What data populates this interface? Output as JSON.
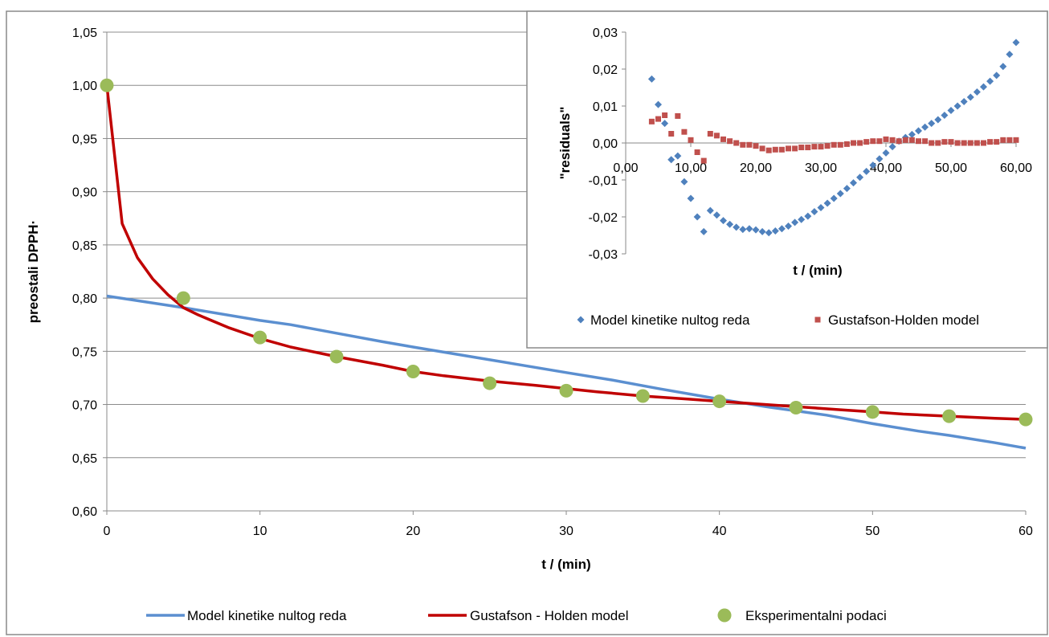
{
  "chart_data": [
    {
      "type": "line",
      "xlabel": "t / (min)",
      "ylabel": "preostali DPPH·",
      "xlim": [
        0,
        60
      ],
      "ylim": [
        0.6,
        1.05
      ],
      "xticks": [
        "0",
        "10",
        "20",
        "30",
        "40",
        "50",
        "60"
      ],
      "yticks": [
        "0,60",
        "0,65",
        "0,70",
        "0,75",
        "0,80",
        "0,85",
        "0,90",
        "0,95",
        "1,00",
        "1,05"
      ],
      "grid": "horizontal",
      "legend_position": "bottom",
      "series": [
        {
          "name": "Model kinetike nultog reda",
          "kind": "line",
          "color": "#5b8fd0",
          "x": [
            0,
            5,
            10,
            12,
            15,
            18,
            20,
            25,
            30,
            33,
            36,
            40,
            43,
            45,
            47,
            50,
            53,
            55,
            58,
            60
          ],
          "y": [
            0.802,
            0.791,
            0.779,
            0.775,
            0.767,
            0.759,
            0.754,
            0.742,
            0.73,
            0.723,
            0.715,
            0.705,
            0.698,
            0.694,
            0.69,
            0.682,
            0.675,
            0.671,
            0.664,
            0.659
          ]
        },
        {
          "name": "Gustafson - Holden model",
          "kind": "line",
          "color": "#c00000",
          "x": [
            0,
            1,
            2,
            3,
            4,
            5,
            6,
            8,
            10,
            12,
            15,
            18,
            20,
            22,
            25,
            28,
            30,
            32,
            35,
            38,
            40,
            42,
            45,
            48,
            50,
            52,
            55,
            58,
            60
          ],
          "y": [
            1.0,
            0.87,
            0.838,
            0.818,
            0.803,
            0.791,
            0.784,
            0.772,
            0.762,
            0.754,
            0.745,
            0.737,
            0.731,
            0.727,
            0.722,
            0.718,
            0.715,
            0.712,
            0.708,
            0.705,
            0.703,
            0.701,
            0.698,
            0.695,
            0.693,
            0.691,
            0.689,
            0.687,
            0.686
          ]
        },
        {
          "name": "Eksperimentalni podaci",
          "kind": "scatter",
          "color": "#9bbb59",
          "x": [
            0,
            5,
            10,
            15,
            20,
            25,
            30,
            35,
            40,
            45,
            50,
            55,
            60
          ],
          "y": [
            1.0,
            0.8,
            0.763,
            0.745,
            0.731,
            0.72,
            0.713,
            0.708,
            0.703,
            0.697,
            0.693,
            0.689,
            0.686
          ]
        }
      ]
    },
    {
      "type": "scatter",
      "xlabel": "t / (min)",
      "ylabel": "\"residuals\"",
      "xlim": [
        0,
        60
      ],
      "ylim": [
        -0.03,
        0.03
      ],
      "xticks": [
        "0,00",
        "10,00",
        "20,00",
        "30,00",
        "40,00",
        "50,00",
        "60,00"
      ],
      "yticks": [
        "-0,03",
        "-0,02",
        "-0,01",
        "0,00",
        "0,01",
        "0,02",
        "0,03"
      ],
      "grid": "none",
      "legend_position": "bottom",
      "series": [
        {
          "name": "Model kinetike nultog reda",
          "marker": "diamond",
          "color": "#4f81bd",
          "x": [
            4,
            5,
            6,
            7,
            8,
            9,
            10,
            11,
            12,
            13,
            14,
            15,
            16,
            17,
            18,
            19,
            20,
            21,
            22,
            23,
            24,
            25,
            26,
            27,
            28,
            29,
            30,
            31,
            32,
            33,
            34,
            35,
            36,
            37,
            38,
            39,
            40,
            41,
            42,
            43,
            44,
            45,
            46,
            47,
            48,
            49,
            50,
            51,
            52,
            53,
            54,
            55,
            56,
            57,
            58,
            59,
            60
          ],
          "y": [
            0.0173,
            0.0104,
            0.0053,
            -0.0045,
            -0.0035,
            -0.0105,
            -0.015,
            -0.02,
            -0.024,
            -0.0183,
            -0.0195,
            -0.021,
            -0.022,
            -0.0228,
            -0.0234,
            -0.0232,
            -0.0235,
            -0.024,
            -0.0243,
            -0.0238,
            -0.0232,
            -0.0225,
            -0.0215,
            -0.0207,
            -0.0198,
            -0.0186,
            -0.0175,
            -0.0163,
            -0.015,
            -0.0137,
            -0.0123,
            -0.0108,
            -0.0093,
            -0.0077,
            -0.006,
            -0.0043,
            -0.0027,
            -0.001,
            0.0005,
            0.0015,
            0.0023,
            0.0033,
            0.0043,
            0.0053,
            0.0063,
            0.0075,
            0.0088,
            0.01,
            0.0112,
            0.0124,
            0.0138,
            0.0152,
            0.0167,
            0.0183,
            0.0207,
            0.024,
            0.0272
          ]
        },
        {
          "name": "Gustafson-Holden model",
          "marker": "square",
          "color": "#c0504d",
          "x": [
            4,
            5,
            6,
            7,
            8,
            9,
            10,
            11,
            12,
            13,
            14,
            15,
            16,
            17,
            18,
            19,
            20,
            21,
            22,
            23,
            24,
            25,
            26,
            27,
            28,
            29,
            30,
            31,
            32,
            33,
            34,
            35,
            36,
            37,
            38,
            39,
            40,
            41,
            42,
            43,
            44,
            45,
            46,
            47,
            48,
            49,
            50,
            51,
            52,
            53,
            54,
            55,
            56,
            57,
            58,
            59,
            60
          ],
          "y": [
            0.0058,
            0.0065,
            0.0075,
            0.0025,
            0.0073,
            0.003,
            0.0008,
            -0.0025,
            -0.0048,
            0.0025,
            0.002,
            0.001,
            0.0005,
            0.0,
            -0.0005,
            -0.0005,
            -0.0008,
            -0.0015,
            -0.002,
            -0.0018,
            -0.0018,
            -0.0015,
            -0.0015,
            -0.0012,
            -0.0012,
            -0.001,
            -0.001,
            -0.0008,
            -0.0005,
            -0.0005,
            -0.0003,
            0.0,
            0.0,
            0.0003,
            0.0005,
            0.0005,
            0.001,
            0.0008,
            0.0005,
            0.0008,
            0.0008,
            0.0005,
            0.0005,
            0.0,
            0.0,
            0.0003,
            0.0003,
            0.0,
            0.0,
            0.0,
            0.0,
            0.0,
            0.0003,
            0.0003,
            0.0008,
            0.0008,
            0.0008
          ]
        }
      ]
    }
  ]
}
